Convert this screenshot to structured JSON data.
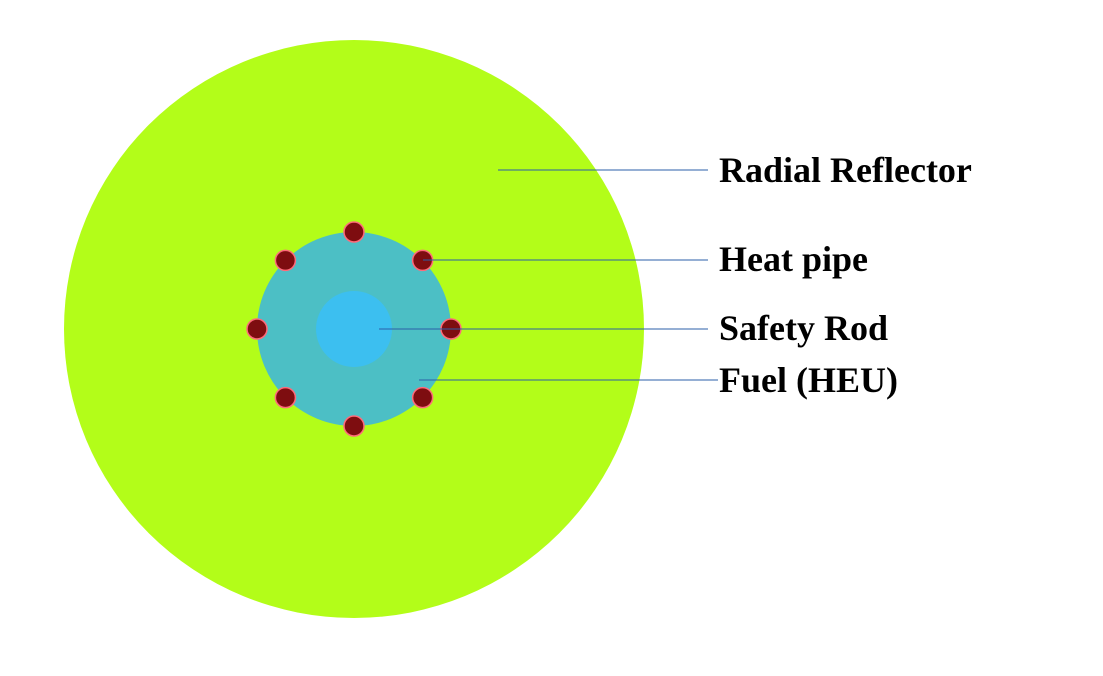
{
  "labels": {
    "radial_reflector": "Radial Reflector",
    "heat_pipe": "Heat pipe",
    "safety_rod": "Safety Rod",
    "fuel": "Fuel (HEU)"
  },
  "colors": {
    "reflector": "#b3fd19",
    "fuel": "#4cbfc5",
    "safety_rod": "#3cbff0",
    "heat_pipe_fill": "#7e0d10",
    "heat_pipe_stroke": "#ff6a7a",
    "leader_line": "#2b5fa8"
  },
  "heat_pipe_count": 8
}
